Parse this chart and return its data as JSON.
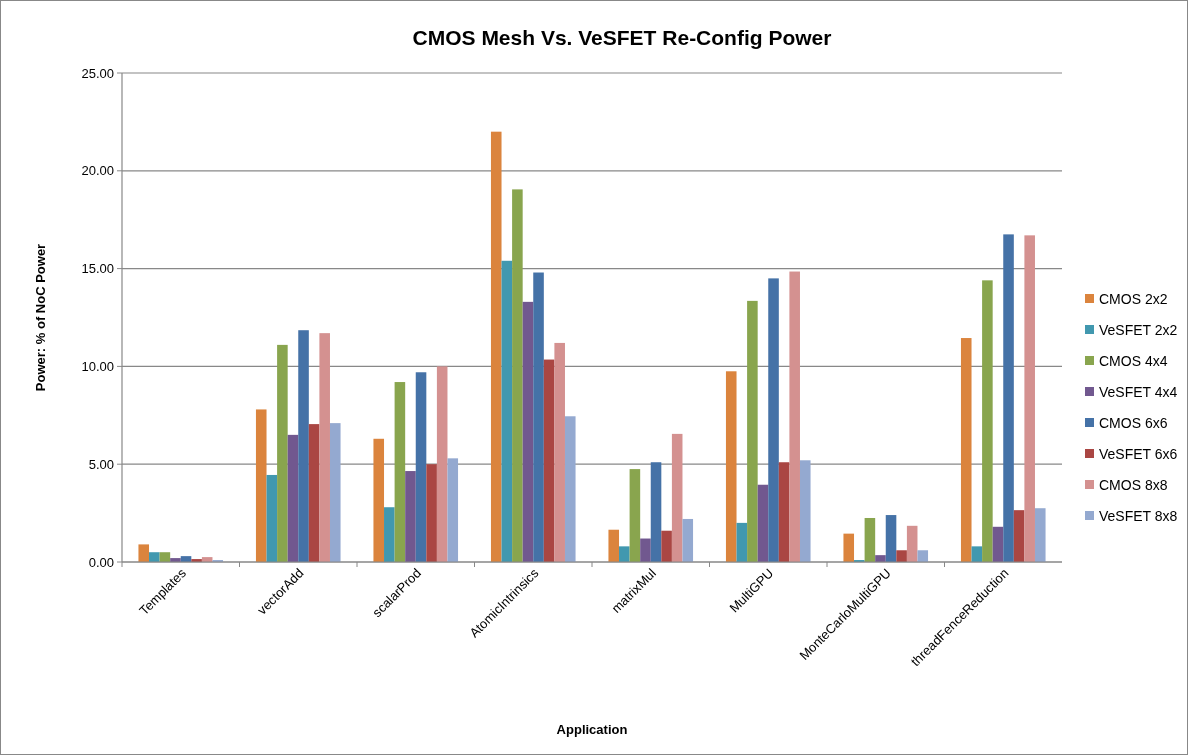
{
  "chart_data": {
    "type": "bar",
    "title": "CMOS Mesh Vs. VeSFET Re-Config Power",
    "xlabel": "Application",
    "ylabel": "Power: % of NoC Power",
    "categories": [
      "Templates",
      "vectorAdd",
      "scalarProd",
      "AtomicIntrinsics",
      "matrixMul",
      "MultiGPU",
      "MonteCarloMultiGPU",
      "threadFenceReduction"
    ],
    "series": [
      {
        "name": "CMOS 2x2",
        "color": "#db843d",
        "values": [
          0.9,
          7.8,
          6.3,
          22.0,
          1.65,
          9.75,
          1.45,
          11.45
        ]
      },
      {
        "name": "VeSFET 2x2",
        "color": "#4198af",
        "values": [
          0.5,
          4.45,
          2.8,
          15.4,
          0.8,
          2.0,
          0.1,
          0.8
        ]
      },
      {
        "name": "CMOS 4x4",
        "color": "#89a54e",
        "values": [
          0.5,
          11.1,
          9.2,
          19.05,
          4.75,
          13.35,
          2.25,
          14.4
        ]
      },
      {
        "name": "VeSFET 4x4",
        "color": "#71588f",
        "values": [
          0.2,
          6.5,
          4.65,
          13.3,
          1.2,
          3.95,
          0.35,
          1.8
        ]
      },
      {
        "name": "CMOS 6x6",
        "color": "#4572a7",
        "values": [
          0.3,
          11.85,
          9.7,
          14.8,
          5.1,
          14.5,
          2.4,
          16.75
        ]
      },
      {
        "name": "VeSFET 6x6",
        "color": "#aa4643",
        "values": [
          0.15,
          7.05,
          5.0,
          10.35,
          1.6,
          5.1,
          0.6,
          2.65
        ]
      },
      {
        "name": "CMOS 8x8",
        "color": "#d49190",
        "values": [
          0.25,
          11.7,
          10.0,
          11.2,
          6.55,
          14.85,
          1.85,
          16.7
        ]
      },
      {
        "name": "VeSFET 8x8",
        "color": "#94a9d0",
        "values": [
          0.1,
          7.1,
          5.3,
          7.45,
          2.2,
          5.2,
          0.6,
          2.75
        ]
      }
    ],
    "ylim": [
      0,
      25
    ],
    "yticks": [
      {
        "value": 0,
        "label": "0.00"
      },
      {
        "value": 5,
        "label": "5.00"
      },
      {
        "value": 10,
        "label": "10.00"
      },
      {
        "value": 15,
        "label": "15.00"
      },
      {
        "value": 20,
        "label": "20.00"
      },
      {
        "value": 25,
        "label": "25.00"
      }
    ],
    "grid": "y",
    "legend": "right"
  }
}
